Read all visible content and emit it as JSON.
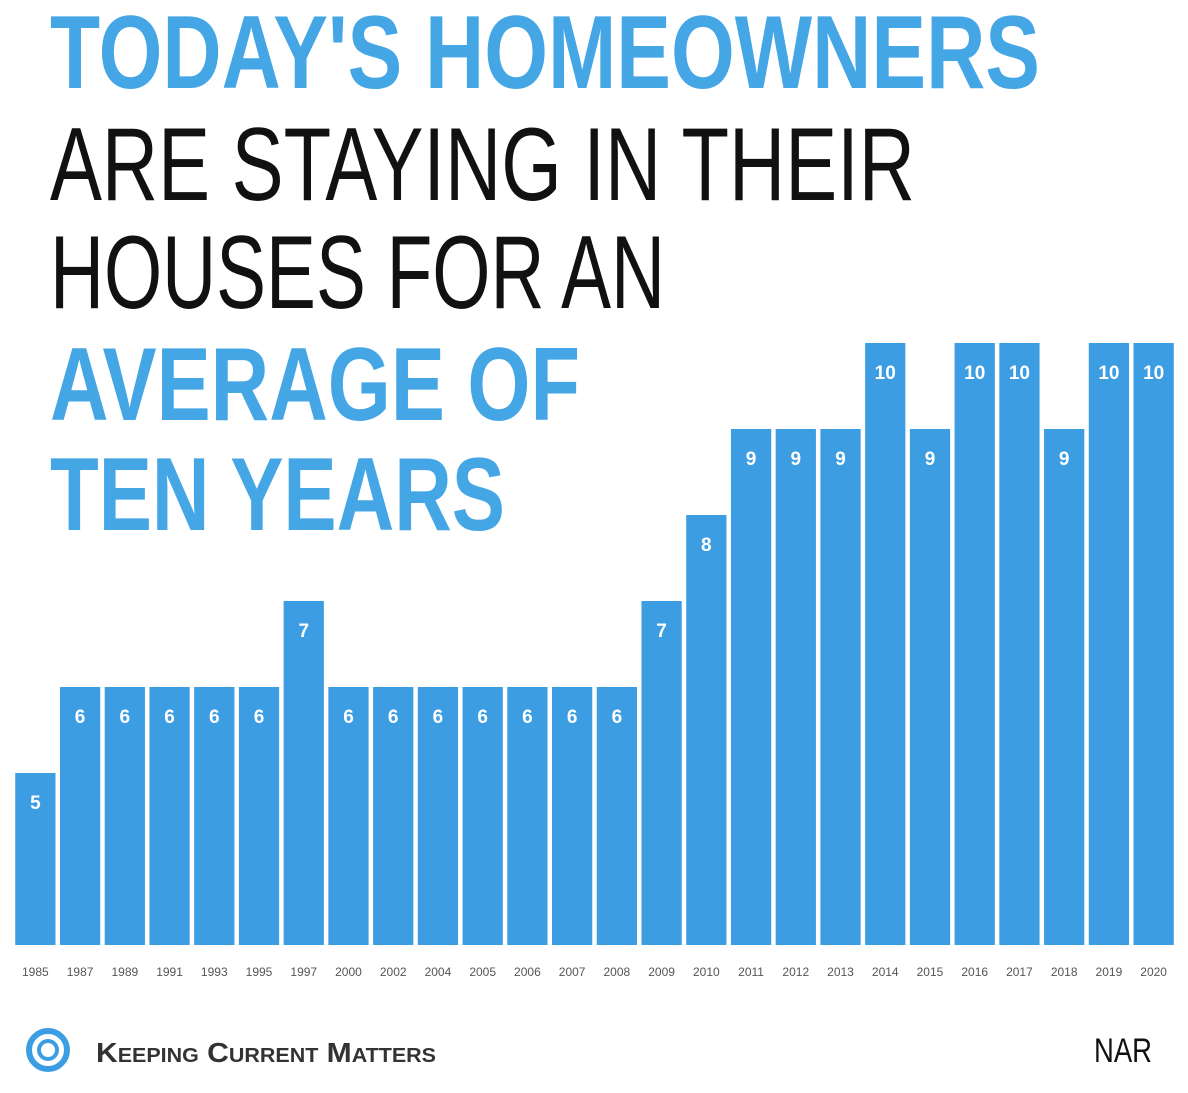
{
  "chart_data": {
    "type": "bar",
    "title_lines": [
      {
        "text": "TODAY'S HOMEOWNERS",
        "color": "#45a6e6"
      },
      {
        "text": "ARE STAYING IN THEIR",
        "color": "#111111"
      },
      {
        "text": "HOUSES FOR AN",
        "color": "#111111"
      },
      {
        "text": "AVERAGE OF",
        "color": "#45a6e6"
      },
      {
        "text": "TEN YEARS",
        "color": "#45a6e6"
      }
    ],
    "categories": [
      "1985",
      "1987",
      "1989",
      "1991",
      "1993",
      "1995",
      "1997",
      "2000",
      "2002",
      "2004",
      "2005",
      "2006",
      "2007",
      "2008",
      "2009",
      "2010",
      "2011",
      "2012",
      "2013",
      "2014",
      "2015",
      "2016",
      "2017",
      "2018",
      "2019",
      "2020"
    ],
    "values": [
      5,
      6,
      6,
      6,
      6,
      6,
      7,
      6,
      6,
      6,
      6,
      6,
      6,
      6,
      7,
      8,
      9,
      9,
      9,
      10,
      9,
      10,
      10,
      9,
      10,
      10
    ],
    "color": "#3c9de2",
    "ylim": [
      3,
      10
    ],
    "brand": "Keeping Current Matters",
    "source": "NAR"
  }
}
